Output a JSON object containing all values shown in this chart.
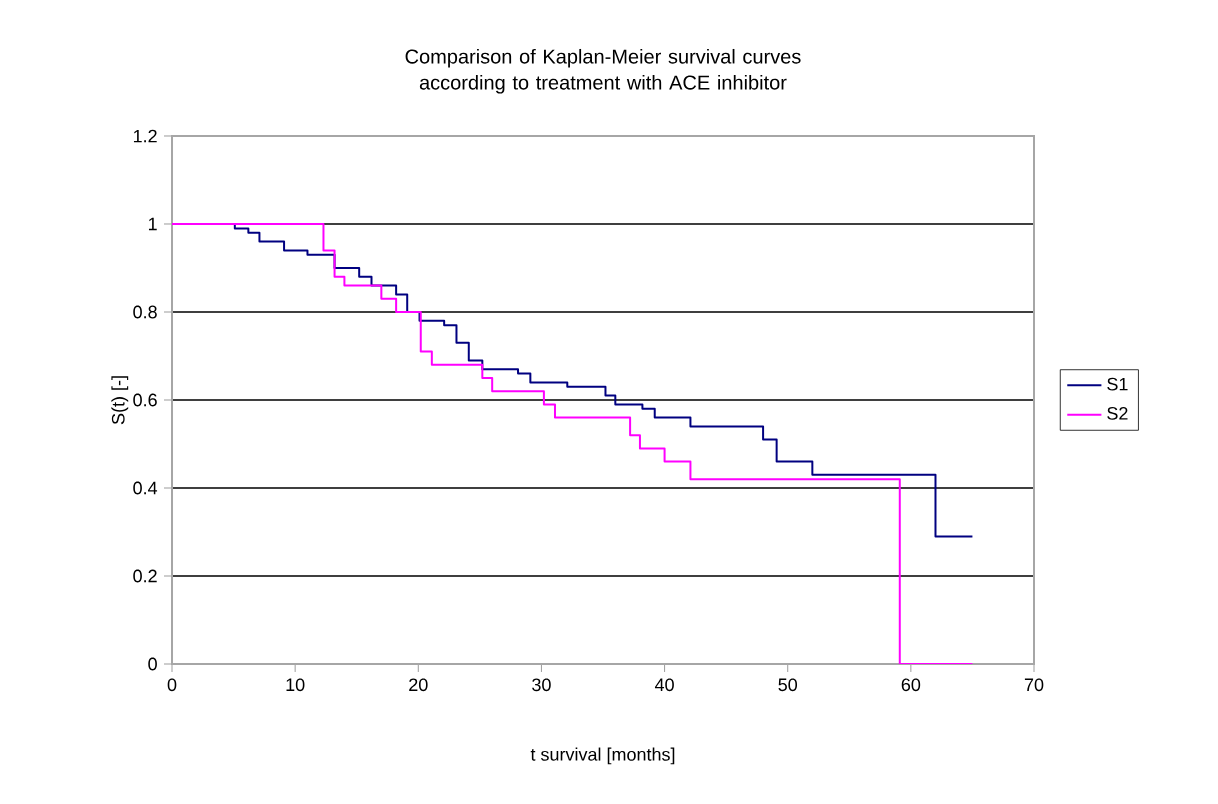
{
  "chart_data": {
    "type": "step",
    "title": "Comparison of Kaplan-Meier survival curves according to treatment with ACE inhibitor",
    "xlabel": "t survival [months]",
    "ylabel": "S(t) [-]",
    "xlim": [
      0,
      70
    ],
    "ylim": [
      0,
      1.2
    ],
    "xticks": [
      0,
      10,
      20,
      30,
      40,
      50,
      60,
      70
    ],
    "yticks": [
      0,
      0.2,
      0.4,
      0.6,
      0.8,
      1,
      1.2
    ],
    "grid": "y",
    "legend": "right",
    "series": [
      {
        "name": "S1",
        "color": "#000080",
        "x": [
          0,
          5.1,
          6.2,
          7.1,
          9.1,
          11.0,
          13.2,
          15.2,
          16.2,
          18.2,
          19.1,
          20.1,
          22.1,
          23.1,
          24.1,
          25.2,
          28.1,
          29.1,
          32.1,
          35.2,
          36.0,
          38.2,
          39.2,
          42.1,
          48.0,
          49.1,
          52.0,
          62.0,
          65.0
        ],
        "values": [
          1,
          0.99,
          0.98,
          0.96,
          0.94,
          0.93,
          0.9,
          0.88,
          0.86,
          0.84,
          0.8,
          0.78,
          0.77,
          0.73,
          0.69,
          0.67,
          0.66,
          0.64,
          0.63,
          0.61,
          0.59,
          0.58,
          0.56,
          0.54,
          0.51,
          0.46,
          0.43,
          0.29,
          0.29
        ]
      },
      {
        "name": "S2",
        "color": "#ff00ff",
        "x": [
          0,
          12.3,
          13.2,
          14.0,
          17.0,
          18.2,
          20.2,
          21.1,
          25.2,
          26.0,
          30.2,
          31.1,
          37.2,
          38.0,
          40.0,
          42.1,
          59.1,
          65.0
        ],
        "values": [
          1,
          0.94,
          0.88,
          0.86,
          0.83,
          0.8,
          0.71,
          0.68,
          0.65,
          0.62,
          0.59,
          0.56,
          0.52,
          0.49,
          0.46,
          0.42,
          0,
          0
        ]
      }
    ]
  }
}
